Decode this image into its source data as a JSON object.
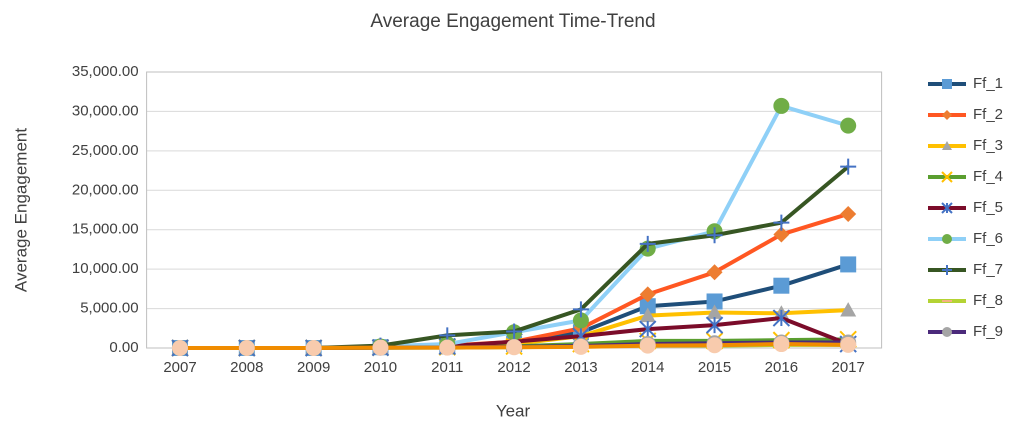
{
  "chart_data": {
    "type": "line",
    "title": "Average Engagement Time-Trend",
    "x_label": "Year",
    "y_label": "Average Engagement",
    "categories": [
      "2007",
      "2008",
      "2009",
      "2010",
      "2011",
      "2012",
      "2013",
      "2014",
      "2015",
      "2016",
      "2017"
    ],
    "ylim": [
      0,
      35000
    ],
    "yticks": [
      {
        "value": 0,
        "label": "0.00"
      },
      {
        "value": 5000,
        "label": "5,000.00"
      },
      {
        "value": 10000,
        "label": "10,000.00"
      },
      {
        "value": 15000,
        "label": "15,000.00"
      },
      {
        "value": 20000,
        "label": "20,000.00"
      },
      {
        "value": 25000,
        "label": "25,000.00"
      },
      {
        "value": 30000,
        "label": "30,000.00"
      },
      {
        "value": 35000,
        "label": "35,000.00"
      }
    ],
    "grid": true,
    "legend": "right",
    "series": [
      {
        "name": "Ff_1",
        "color": "#1f4e79",
        "marker": "square",
        "marker_color": "#5b9bd5",
        "values": [
          0,
          0,
          0,
          100,
          200,
          500,
          2000,
          5300,
          5900,
          7900,
          10600
        ]
      },
      {
        "name": "Ff_2",
        "color": "#ff5722",
        "marker": "diamond",
        "marker_color": "#ed7d31",
        "values": [
          0,
          0,
          0,
          100,
          300,
          800,
          2500,
          6800,
          9600,
          14400,
          17000
        ]
      },
      {
        "name": "Ff_3",
        "color": "#ffc000",
        "marker": "triangle",
        "marker_color": "#a5a5a5",
        "values": [
          0,
          0,
          0,
          100,
          200,
          500,
          1500,
          4100,
          4500,
          4400,
          4800
        ]
      },
      {
        "name": "Ff_4",
        "color": "#5a9e2f",
        "marker": "x",
        "marker_color": "#ffc000",
        "values": [
          0,
          0,
          0,
          50,
          100,
          200,
          500,
          900,
          900,
          1000,
          1100
        ]
      },
      {
        "name": "Ff_5",
        "color": "#7b0c2a",
        "marker": "star",
        "marker_color": "#4472c4",
        "values": [
          0,
          0,
          0,
          50,
          200,
          800,
          1500,
          2400,
          2900,
          3800,
          500
        ]
      },
      {
        "name": "Ff_6",
        "color": "#8fd0f7",
        "marker": "circle",
        "marker_color": "#70ad47",
        "values": [
          0,
          0,
          0,
          200,
          500,
          2000,
          3500,
          12600,
          14800,
          30700,
          28200
        ]
      },
      {
        "name": "Ff_7",
        "color": "#375623",
        "marker": "plus",
        "marker_color": "#4472c4",
        "values": [
          0,
          0,
          0,
          300,
          1600,
          2100,
          4900,
          13200,
          14300,
          15900,
          23000
        ]
      },
      {
        "name": "Ff_8",
        "color": "#b4d334",
        "marker": "dash",
        "marker_color": "#f4b183",
        "values": [
          0,
          0,
          0,
          30,
          50,
          100,
          200,
          300,
          300,
          400,
          400
        ]
      },
      {
        "name": "Ff_9",
        "color": "#4b2a7b",
        "marker": "circle",
        "marker_color": "#a5a5a5",
        "values": [
          0,
          0,
          0,
          40,
          60,
          150,
          250,
          500,
          600,
          700,
          700
        ]
      },
      {
        "color": "#f08c00",
        "marker": "circle",
        "marker_color": "#f8cbad",
        "values": [
          0,
          0,
          0,
          50,
          50,
          100,
          150,
          300,
          350,
          500,
          400
        ]
      }
    ]
  }
}
